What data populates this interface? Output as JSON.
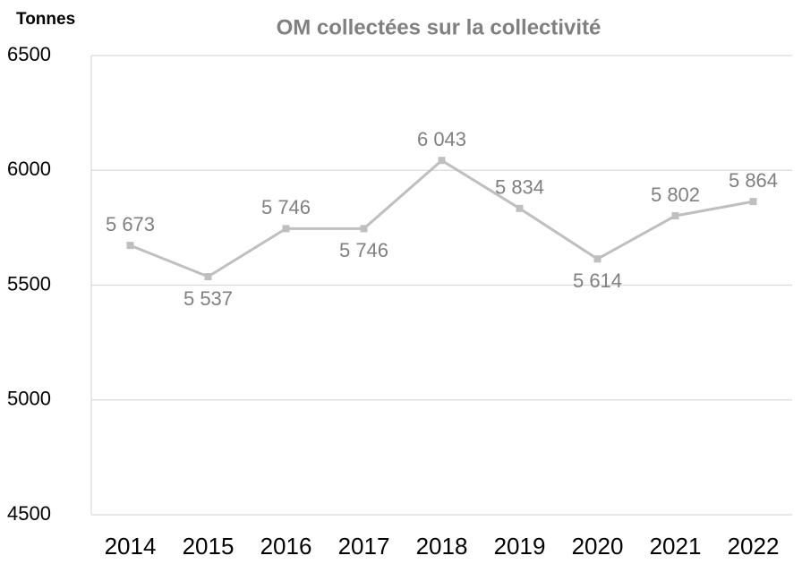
{
  "chart_data": {
    "type": "line",
    "title": "OM collectées sur la collectivité",
    "y_label": "Tonnes",
    "categories": [
      "2014",
      "2015",
      "2016",
      "2017",
      "2018",
      "2019",
      "2020",
      "2021",
      "2022"
    ],
    "series": [
      {
        "name": "OM collectées",
        "color": "#bfbfbf",
        "values": [
          5673,
          5537,
          5746,
          5746,
          6043,
          5834,
          5614,
          5802,
          5864
        ],
        "value_labels": [
          "5 673",
          "5 537",
          "5 746",
          "5 746",
          "6 043",
          "5 834",
          "5 614",
          "5 802",
          "5 864"
        ]
      }
    ],
    "ylim": [
      4500,
      6500
    ],
    "yticks": [
      4500,
      5000,
      5500,
      6000,
      6500
    ],
    "grid": true
  }
}
